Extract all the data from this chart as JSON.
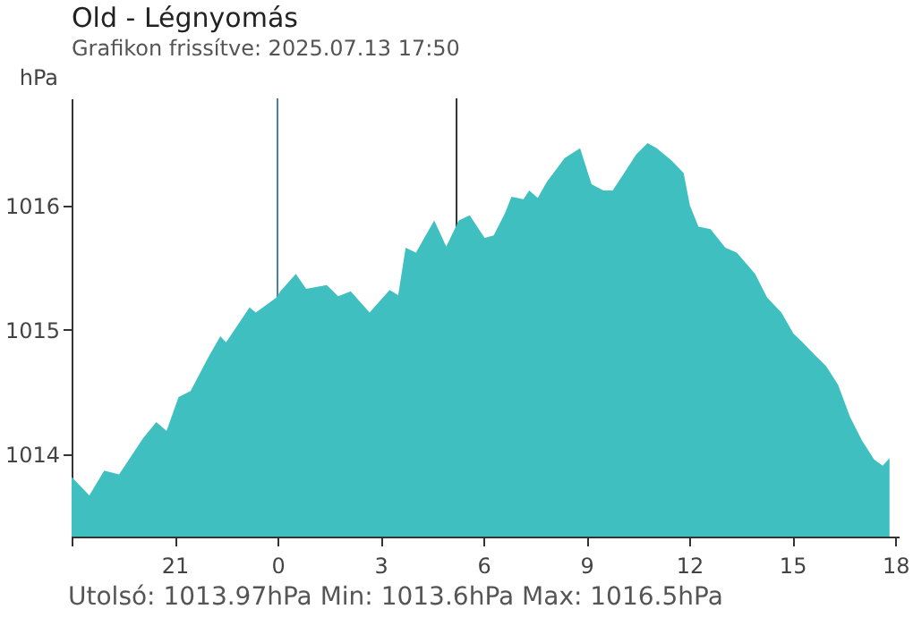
{
  "chart_data": {
    "type": "area",
    "title": "Old - Légnyomás",
    "subtitle": "Grafikon frissítve: 2025.07.13 17:50",
    "ylabel": "hPa",
    "annotations": [
      "Utolsó: 1013.97hPa  Min: 1013.6hPa  Max: 1016.5hPa"
    ],
    "x": [
      "2025-07-12T18:00",
      "2025-07-12T18:31",
      "2025-07-12T18:57",
      "2025-07-12T19:23",
      "2025-07-12T20:05",
      "2025-07-12T20:28",
      "2025-07-12T20:46",
      "2025-07-12T21:07",
      "2025-07-12T21:28",
      "2025-07-12T21:59",
      "2025-07-12T22:20",
      "2025-07-12T22:30",
      "2025-07-12T23:11",
      "2025-07-12T23:22",
      "2025-07-12T23:58",
      "2025-07-13T00:05",
      "2025-07-13T00:32",
      "2025-07-13T00:50",
      "2025-07-13T01:26",
      "2025-07-13T01:46",
      "2025-07-13T02:08",
      "2025-07-13T02:41",
      "2025-07-13T03:16",
      "2025-07-13T03:31",
      "2025-07-13T03:44",
      "2025-07-13T04:02",
      "2025-07-13T04:34",
      "2025-07-13T04:55",
      "2025-07-13T05:17",
      "2025-07-13T05:36",
      "2025-07-13T06:02",
      "2025-07-13T06:18",
      "2025-07-13T06:38",
      "2025-07-13T06:49",
      "2025-07-13T07:10",
      "2025-07-13T07:20",
      "2025-07-13T07:35",
      "2025-07-13T07:51",
      "2025-07-13T08:22",
      "2025-07-13T08:49",
      "2025-07-13T09:09",
      "2025-07-13T09:30",
      "2025-07-13T09:46",
      "2025-07-13T10:06",
      "2025-07-13T10:27",
      "2025-07-13T10:47",
      "2025-07-13T11:03",
      "2025-07-13T11:29",
      "2025-07-13T11:50",
      "2025-07-13T12:01",
      "2025-07-13T12:16",
      "2025-07-13T12:37",
      "2025-07-13T13:03",
      "2025-07-13T13:23",
      "2025-07-13T13:55",
      "2025-07-13T14:16",
      "2025-07-13T14:41",
      "2025-07-13T15:02",
      "2025-07-13T15:18",
      "2025-07-13T15:39",
      "2025-07-13T15:59",
      "2025-07-13T16:20",
      "2025-07-13T16:41",
      "2025-07-13T17:02",
      "2025-07-13T17:23",
      "2025-07-13T17:38",
      "2025-07-13T17:50"
    ],
    "series": [
      {
        "color": "#40bfc1",
        "values": [
          1013.82,
          1013.67,
          1013.87,
          1013.84,
          1014.13,
          1014.26,
          1014.19,
          1014.46,
          1014.51,
          1014.78,
          1014.95,
          1014.9,
          1015.18,
          1015.14,
          1015.26,
          1015.31,
          1015.45,
          1015.33,
          1015.36,
          1015.27,
          1015.31,
          1015.14,
          1015.32,
          1015.28,
          1015.66,
          1015.62,
          1015.88,
          1015.67,
          1015.88,
          1015.92,
          1015.74,
          1015.76,
          1015.94,
          1016.07,
          1016.05,
          1016.12,
          1016.06,
          1016.19,
          1016.38,
          1016.46,
          1016.17,
          1016.12,
          1016.12,
          1016.26,
          1016.41,
          1016.5,
          1016.46,
          1016.36,
          1016.26,
          1016.0,
          1015.83,
          1015.81,
          1015.66,
          1015.62,
          1015.45,
          1015.26,
          1015.14,
          1014.97,
          1014.9,
          1014.8,
          1014.71,
          1014.56,
          1014.3,
          1014.11,
          1013.96,
          1013.91,
          1013.97
        ]
      }
    ],
    "xlim": [
      "2025-07-12T18:00",
      "2025-07-13T18:06"
    ],
    "xticks": [
      {
        "value": "2025-07-12T18:00",
        "label": null
      },
      {
        "value": "2025-07-12T21:00",
        "label": "21"
      },
      {
        "value": "2025-07-13T00:00",
        "label": "0"
      },
      {
        "value": "2025-07-13T03:00",
        "label": "3"
      },
      {
        "value": "2025-07-13T06:00",
        "label": "6"
      },
      {
        "value": "2025-07-13T09:00",
        "label": "9"
      },
      {
        "value": "2025-07-13T12:00",
        "label": "12"
      },
      {
        "value": "2025-07-13T15:00",
        "label": "15"
      },
      {
        "value": "2025-07-13T18:00",
        "label": "18"
      }
    ],
    "ylim": [
      1013.34,
      1016.86
    ],
    "yticks": [
      1014,
      1015,
      1016
    ],
    "ref_lines": [
      {
        "axis": "x",
        "value": "2025-07-13T00:00",
        "color": "#4a7ab0"
      },
      {
        "axis": "x",
        "value": "2025-07-13T05:13",
        "color": "#333333"
      }
    ],
    "grid": false
  }
}
